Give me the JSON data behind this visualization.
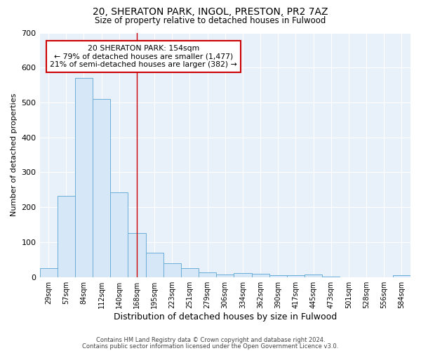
{
  "title": "20, SHERATON PARK, INGOL, PRESTON, PR2 7AZ",
  "subtitle": "Size of property relative to detached houses in Fulwood",
  "xlabel": "Distribution of detached houses by size in Fulwood",
  "ylabel": "Number of detached properties",
  "bar_color": "#d6e8f7",
  "bar_edge_color": "#6aaed6",
  "background_color": "#e8f0fa",
  "grid_color": "#ffffff",
  "categories": [
    "29sqm",
    "57sqm",
    "84sqm",
    "112sqm",
    "140sqm",
    "168sqm",
    "195sqm",
    "223sqm",
    "251sqm",
    "279sqm",
    "306sqm",
    "334sqm",
    "362sqm",
    "390sqm",
    "417sqm",
    "445sqm",
    "473sqm",
    "501sqm",
    "528sqm",
    "556sqm",
    "584sqm"
  ],
  "values": [
    25,
    232,
    570,
    510,
    242,
    126,
    70,
    40,
    25,
    13,
    8,
    11,
    9,
    5,
    5,
    8,
    2,
    0,
    0,
    0,
    6
  ],
  "ylim": [
    0,
    700
  ],
  "yticks": [
    0,
    100,
    200,
    300,
    400,
    500,
    600,
    700
  ],
  "property_line_x": 5.0,
  "property_line_color": "#cc0000",
  "annotation_line1": "20 SHERATON PARK: 154sqm",
  "annotation_line2": "← 79% of detached houses are smaller (1,477)",
  "annotation_line3": "21% of semi-detached houses are larger (382) →",
  "annotation_box_color": "#ffffff",
  "annotation_box_edge_color": "#cc0000",
  "footer_line1": "Contains HM Land Registry data © Crown copyright and database right 2024.",
  "footer_line2": "Contains public sector information licensed under the Open Government Licence v3.0."
}
